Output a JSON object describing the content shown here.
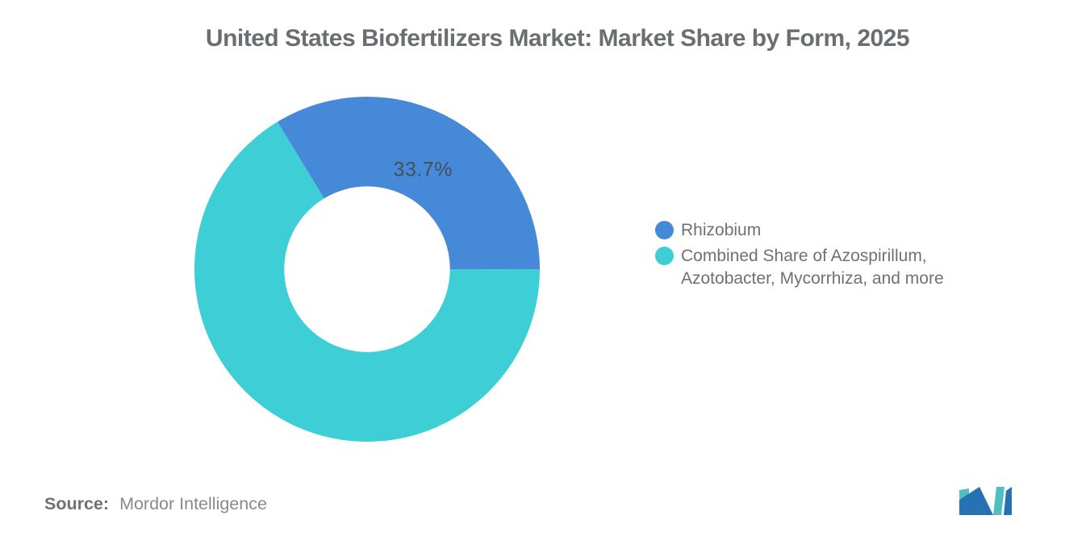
{
  "header": {
    "title": "United States Biofertilizers Market: Market Share by Form, 2025"
  },
  "chart_data": {
    "type": "pie",
    "title": "United States Biofertilizers Market: Market Share by Form, 2025",
    "donut": true,
    "inner_radius_ratio": 0.48,
    "start_angle_deg": -31.3,
    "legend_position": "right",
    "slices": [
      {
        "label": "Rhizobium",
        "value": 33.7,
        "color": "#4789D9",
        "data_label": "33.7%"
      },
      {
        "label": "Combined Share of Azospirillum, Azotobacter, Mycorrhiza, and more",
        "value": 66.3,
        "color": "#3ECED6",
        "data_label": ""
      }
    ]
  },
  "legend": {
    "items": [
      {
        "color": "#4789D9",
        "line1": "Rhizobium",
        "line2": ""
      },
      {
        "color": "#3ECED6",
        "line1": "Combined Share of Azospirillum,",
        "line2": "Azotobacter, Mycorrhiza, and more"
      }
    ]
  },
  "footer": {
    "source_label": "Source:",
    "source_value": "Mordor Intelligence"
  },
  "logo": {
    "alt": "Mordor Intelligence logo",
    "teal": "#4FBFC2",
    "blue": "#2673B4"
  }
}
